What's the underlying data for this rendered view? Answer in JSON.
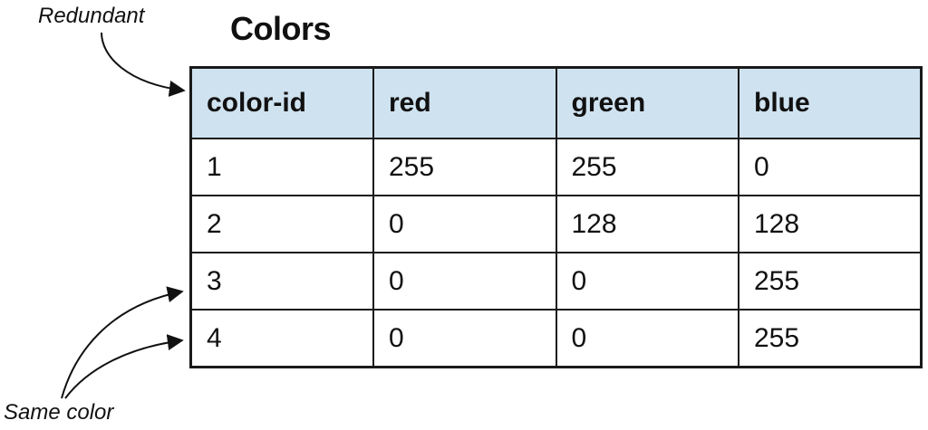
{
  "title": "Colors",
  "annotations": {
    "redundant": "Redundant",
    "same_color": "Same color"
  },
  "table": {
    "columns": [
      "color-id",
      "red",
      "green",
      "blue"
    ],
    "rows": [
      [
        "1",
        "255",
        "255",
        "0"
      ],
      [
        "2",
        "0",
        "128",
        "128"
      ],
      [
        "3",
        "0",
        "0",
        "255"
      ],
      [
        "4",
        "0",
        "0",
        "255"
      ]
    ],
    "header_background": "#cfe2ef",
    "border_color": "#1a1a1a"
  }
}
